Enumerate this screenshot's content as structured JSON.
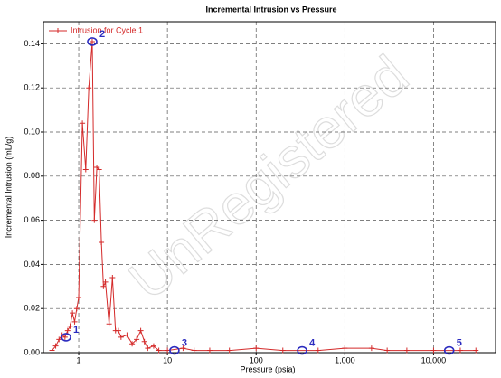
{
  "chart_data": {
    "type": "line",
    "title": "Incremental Intrusion vs Pressure",
    "x_label": "Pressure (psia)",
    "y_label": "Incremental Intrusion (mL/g)",
    "watermark": "UnRegistered",
    "x_log": true,
    "grid": true,
    "legend": "top-left",
    "xlim": [
      0.4,
      50000
    ],
    "ylim": [
      0,
      0.15
    ],
    "xticks": [
      1,
      10,
      100,
      {
        "value": 1000,
        "label": "1,000"
      },
      {
        "value": 10000,
        "label": "10,000"
      }
    ],
    "yticks": [
      {
        "value": 0,
        "label": "0.00"
      },
      {
        "value": 0.02,
        "label": "0.02"
      },
      {
        "value": 0.04,
        "label": "0.04"
      },
      {
        "value": 0.06,
        "label": "0.06"
      },
      {
        "value": 0.08,
        "label": "0.08"
      },
      {
        "value": 0.1,
        "label": "0.10"
      },
      {
        "value": 0.12,
        "label": "0.12"
      },
      {
        "value": 0.14,
        "label": "0.14"
      }
    ],
    "series": [
      {
        "name": "Intrusion for Cycle 1",
        "color": "#d42a2a",
        "x": [
          0.5,
          0.55,
          0.6,
          0.65,
          0.7,
          0.75,
          0.8,
          0.85,
          0.9,
          0.95,
          1.0,
          1.1,
          1.2,
          1.3,
          1.42,
          1.5,
          1.6,
          1.7,
          1.8,
          1.9,
          2.0,
          2.2,
          2.4,
          2.6,
          2.8,
          3.0,
          3.5,
          4.0,
          4.5,
          5.0,
          5.5,
          6,
          7,
          8,
          10,
          15,
          20,
          30,
          50,
          100,
          200,
          500,
          1000,
          2000,
          3000,
          5000,
          10000,
          20000,
          30000
        ],
        "values": [
          0.001,
          0.003,
          0.006,
          0.008,
          0.007,
          0.01,
          0.012,
          0.018,
          0.014,
          0.02,
          0.025,
          0.104,
          0.083,
          0.12,
          0.141,
          0.06,
          0.084,
          0.083,
          0.05,
          0.03,
          0.032,
          0.013,
          0.034,
          0.01,
          0.01,
          0.007,
          0.008,
          0.004,
          0.006,
          0.01,
          0.005,
          0.002,
          0.003,
          0.001,
          0.001,
          0.002,
          0.001,
          0.001,
          0.001,
          0.002,
          0.001,
          0.001,
          0.002,
          0.002,
          0.001,
          0.001,
          0.001,
          0.001,
          0.001
        ]
      }
    ],
    "annotations": [
      {
        "text": "1",
        "x": 0.72,
        "y": 0.007
      },
      {
        "text": "2",
        "x": 1.42,
        "y": 0.141
      },
      {
        "text": "3",
        "x": 12,
        "y": 0.001
      },
      {
        "text": "4",
        "x": 330,
        "y": 0.001
      },
      {
        "text": "5",
        "x": 15000,
        "y": 0.001
      }
    ]
  }
}
